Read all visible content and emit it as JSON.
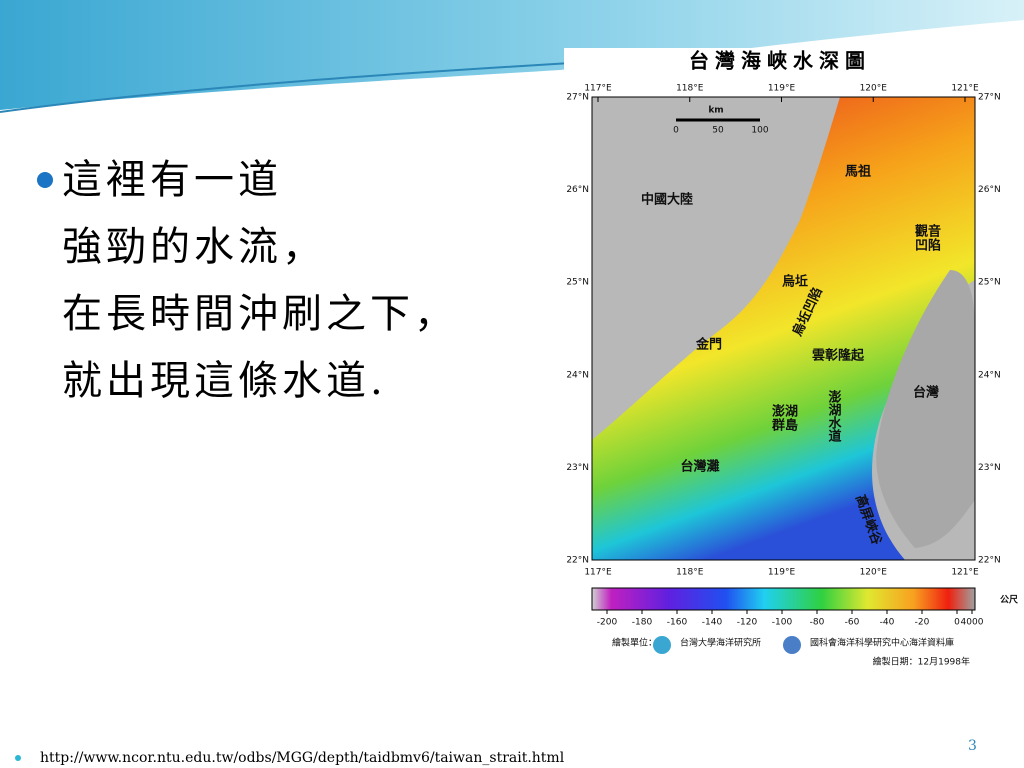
{
  "slide": {
    "bullet_lines": [
      "這裡有一道",
      "強勁的水流，",
      "在長時間沖刷之下，",
      "就出現這條水道."
    ],
    "page_number": "3",
    "footer_url": "http://www.ncor.ntu.edu.tw/odbs/MGG/depth/taidbmv6/taiwan_strait.html"
  },
  "map": {
    "title": "台灣海峽水深圖",
    "lon_labels": [
      "117°E",
      "118°E",
      "119°E",
      "120°E",
      "121°E"
    ],
    "lat_labels": [
      "27°N",
      "26°N",
      "25°N",
      "24°N",
      "23°N",
      "22°N"
    ],
    "scale": {
      "unit": "km",
      "ticks": [
        "0",
        "50",
        "100"
      ]
    },
    "places": [
      {
        "lines": [
          "馬祖"
        ]
      },
      {
        "lines": [
          "中國大陸"
        ]
      },
      {
        "lines": [
          "觀音",
          "凹陷"
        ]
      },
      {
        "lines": [
          "烏坵"
        ]
      },
      {
        "lines": [
          "烏坵凹陷"
        ]
      },
      {
        "lines": [
          "金門"
        ]
      },
      {
        "lines": [
          "雲彰隆起"
        ]
      },
      {
        "lines": [
          "澎湖水道"
        ]
      },
      {
        "lines": [
          "澎湖",
          "群島"
        ]
      },
      {
        "lines": [
          "台灣"
        ]
      },
      {
        "lines": [
          "台灣灘"
        ]
      },
      {
        "lines": [
          "高屏峽谷"
        ]
      }
    ],
    "colorbar": {
      "ticks": [
        -200,
        -180,
        -160,
        -140,
        -120,
        -100,
        -80,
        -60,
        -40,
        -20,
        0,
        4000
      ],
      "unit": "公尺"
    },
    "credits": {
      "label": "繪製單位：",
      "orgs": [
        "台灣大學海洋研究所",
        "國科會海洋科學研究中心海洋資料庫"
      ]
    },
    "date": "繪製日期：12月1998年"
  }
}
